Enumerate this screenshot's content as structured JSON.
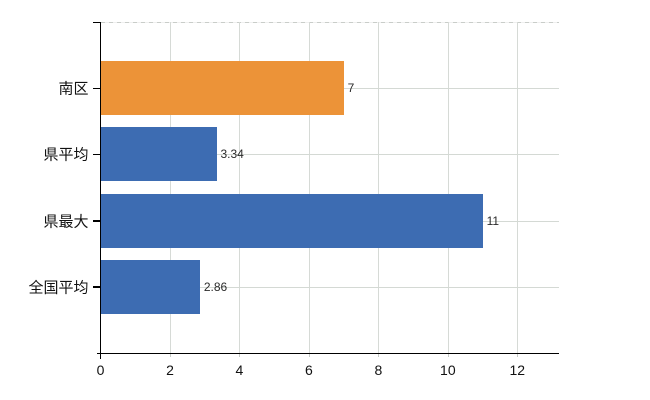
{
  "chart_data": {
    "type": "bar",
    "orientation": "horizontal",
    "title": "",
    "xlabel": "",
    "ylabel": "",
    "categories": [
      "南区",
      "県平均",
      "県最大",
      "全国平均"
    ],
    "values": [
      7,
      3.34,
      11,
      2.86
    ],
    "value_labels": [
      "7",
      "3.34",
      "11",
      "2.86"
    ],
    "bar_colors": [
      "#EC9338",
      "#3D6CB2",
      "#3D6CB2",
      "#3D6CB2"
    ],
    "x_ticks": [
      0,
      2,
      4,
      6,
      8,
      10,
      12
    ],
    "xlim": [
      0,
      13.2
    ],
    "grid": true,
    "legend": false
  },
  "colors": {
    "highlight_bar": "#EC9338",
    "default_bar": "#3D6CB2",
    "gridline": "#d6dad6",
    "axis": "#000000",
    "background": "#ffffff",
    "label_text": "#111111",
    "value_text": "#2b2b2b"
  }
}
